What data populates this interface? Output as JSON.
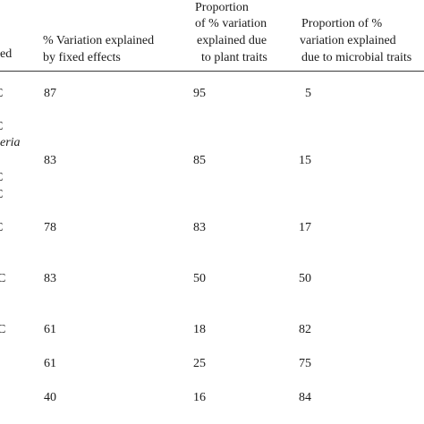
{
  "table": {
    "headers": {
      "col0_fragment": "ed",
      "col1": [
        "% Variation explained",
        "by fixed effects"
      ],
      "col2": [
        "Proportion",
        "of % variation",
        "explained due",
        "to plant traits"
      ],
      "col3": [
        "Proportion of %",
        "variation explained",
        "due to microbial traits"
      ]
    },
    "row_fragments": [
      {
        "text": "C",
        "italic": false
      },
      {
        "text": "C",
        "italic": false
      },
      {
        "text": "eria",
        "italic": true
      },
      {
        "text": "C",
        "italic": false
      },
      {
        "text": "C",
        "italic": false
      },
      {
        "text": "C",
        "italic": false
      },
      {
        "text": "C",
        "italic": false
      },
      {
        "text": "C",
        "italic": false
      }
    ],
    "rows": [
      {
        "fixed": "87",
        "plant": "95",
        "microbial": "5"
      },
      {
        "fixed": "83",
        "plant": "85",
        "microbial": "15"
      },
      {
        "fixed": "78",
        "plant": "83",
        "microbial": "17"
      },
      {
        "fixed": "83",
        "plant": "50",
        "microbial": "50"
      },
      {
        "fixed": "61",
        "plant": "18",
        "microbial": "82"
      },
      {
        "fixed": "61",
        "plant": "25",
        "microbial": "75"
      },
      {
        "fixed": "40",
        "plant": "16",
        "microbial": "84"
      }
    ]
  }
}
